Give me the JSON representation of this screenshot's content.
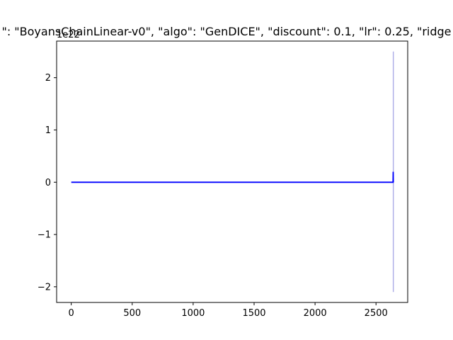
{
  "chart_data": {
    "type": "line",
    "title": "\": \"BoyansChainLinear-v0\", \"algo\": \"GenDICE\", \"discount\": 0.1, \"lr\": 0.25, \"ridge",
    "xlabel": "",
    "ylabel": "",
    "y_offset_label": "1e22",
    "xlim": [
      -120,
      2760
    ],
    "ylim": [
      -2.3,
      2.7
    ],
    "x_ticks": [
      0,
      500,
      1000,
      1500,
      2000,
      2500
    ],
    "y_ticks": [
      -2,
      -1,
      0,
      1,
      2
    ],
    "x_tick_labels": [
      "0",
      "500",
      "1000",
      "1500",
      "2000",
      "2500"
    ],
    "y_tick_labels": [
      "−2",
      "−1",
      "0",
      "1",
      "2"
    ],
    "grid": false,
    "series": [
      {
        "color": "#0000ff",
        "x": [
          0,
          500,
          1000,
          1500,
          2000,
          2500,
          2640,
          2641,
          2642
        ],
        "y": [
          0,
          0,
          0,
          0,
          0,
          0,
          0,
          0.2,
          0
        ]
      }
    ],
    "band": {
      "color": "#b0b0e8",
      "x": 2642,
      "lower": -2.1,
      "upper": 2.5
    }
  }
}
